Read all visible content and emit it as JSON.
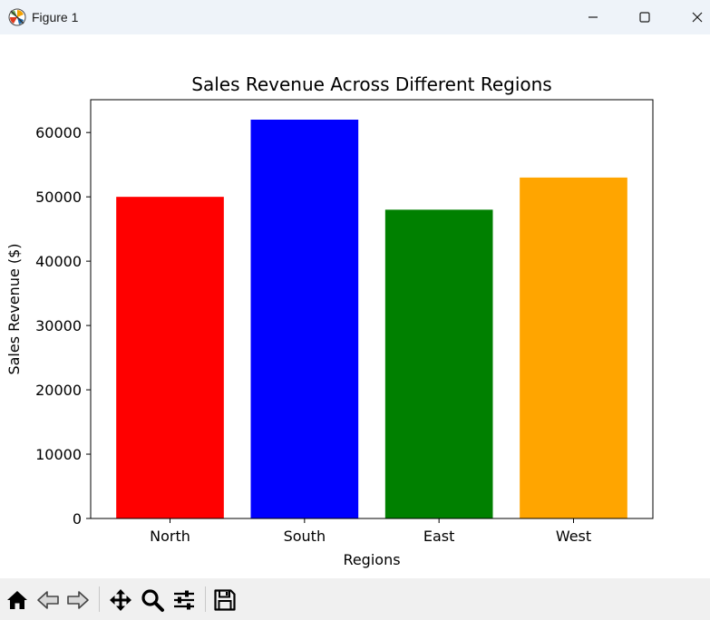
{
  "window": {
    "title": "Figure 1",
    "icon": "matplotlib-logo-icon",
    "controls": [
      "minimize-icon",
      "maximize-icon",
      "close-icon"
    ]
  },
  "toolbar": {
    "buttons": [
      {
        "name": "home",
        "icon": "home-icon"
      },
      {
        "name": "back",
        "icon": "back-arrow-icon"
      },
      {
        "name": "forward",
        "icon": "forward-arrow-icon"
      },
      {
        "name": "pan",
        "icon": "move-icon"
      },
      {
        "name": "zoom",
        "icon": "zoom-icon"
      },
      {
        "name": "configure-subplots",
        "icon": "sliders-icon"
      },
      {
        "name": "save",
        "icon": "save-icon"
      }
    ]
  },
  "chart_data": {
    "type": "bar",
    "title": "Sales Revenue Across Different Regions",
    "xlabel": "Regions",
    "ylabel": "Sales Revenue ($)",
    "categories": [
      "North",
      "South",
      "East",
      "West"
    ],
    "values": [
      50000,
      62000,
      48000,
      53000
    ],
    "colors": [
      "#ff0000",
      "#0000ff",
      "#008000",
      "#ffa500"
    ],
    "ylim": [
      0,
      65100
    ],
    "yticks": [
      0,
      10000,
      20000,
      30000,
      40000,
      50000,
      60000
    ],
    "ytick_labels": [
      "0",
      "10000",
      "20000",
      "30000",
      "40000",
      "50000",
      "60000"
    ],
    "grid": false,
    "legend": "none"
  }
}
